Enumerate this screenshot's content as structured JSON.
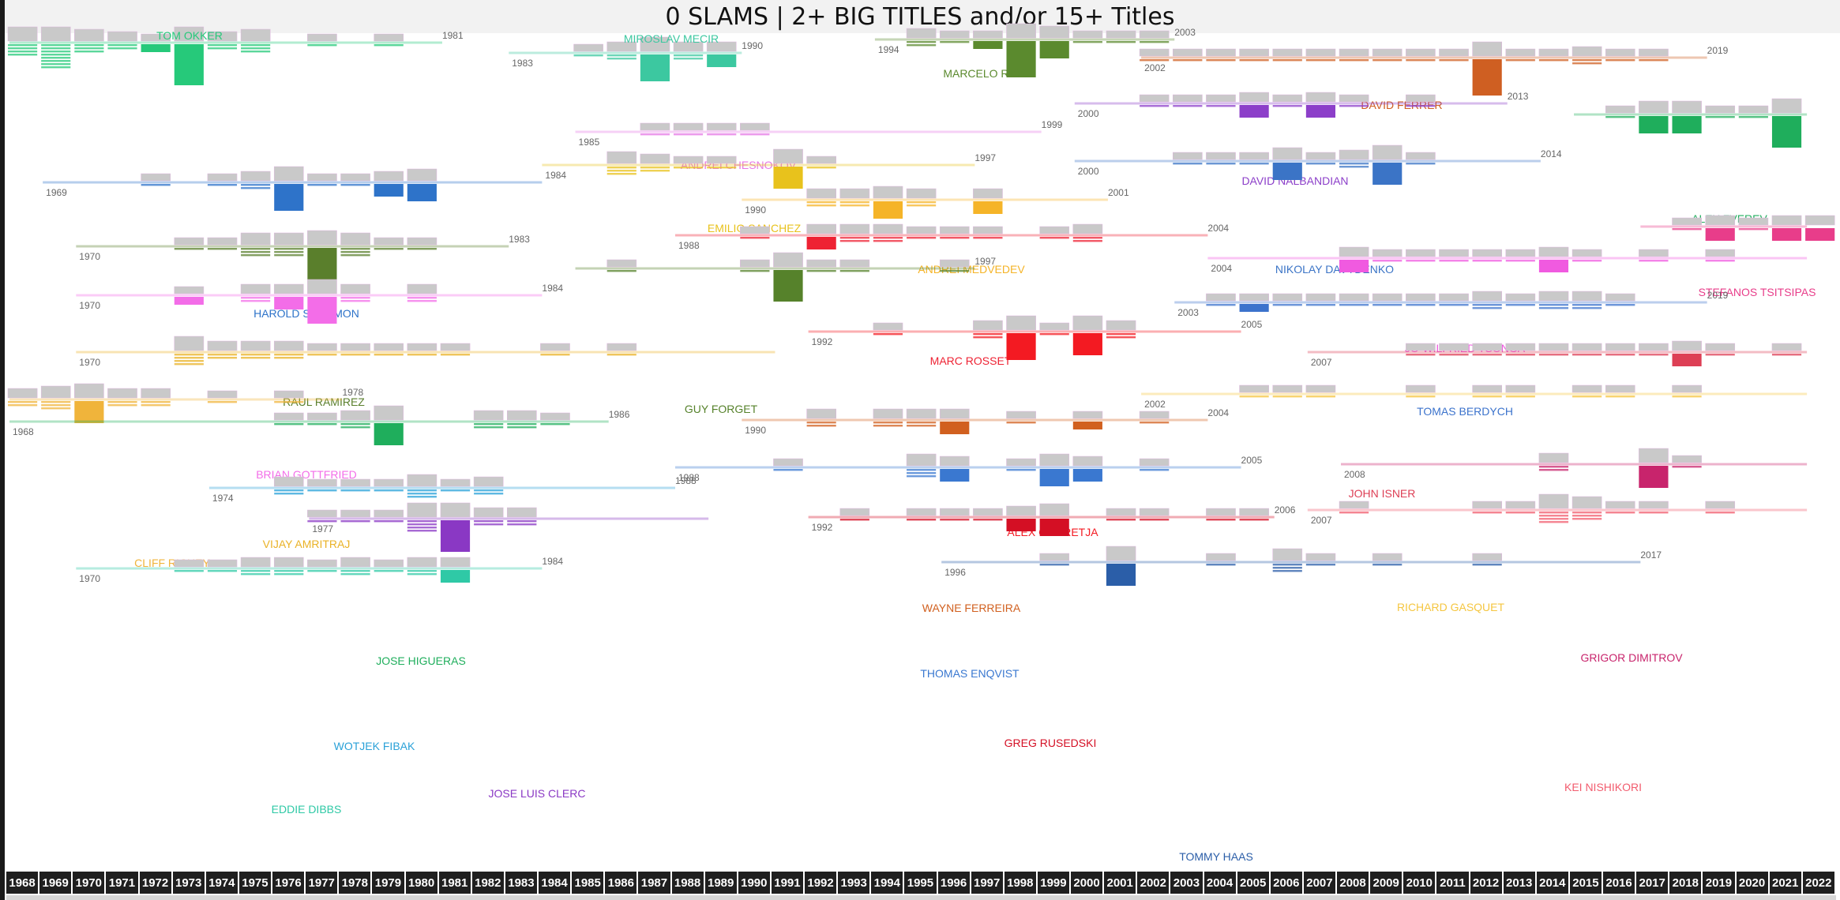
{
  "title": "0 SLAMS | 2+ BIG TITLES and/or 15+ Titles",
  "chart_data": {
    "type": "timeline",
    "title": "0 SLAMS | 2+ BIG TITLES and/or 15+ Titles",
    "x_axis_years": [
      1968,
      1969,
      1970,
      1971,
      1972,
      1973,
      1974,
      1975,
      1976,
      1977,
      1978,
      1979,
      1980,
      1981,
      1982,
      1983,
      1984,
      1985,
      1986,
      1987,
      1988,
      1989,
      1990,
      1991,
      1992,
      1993,
      1994,
      1995,
      1996,
      1997,
      1998,
      1999,
      2000,
      2001,
      2002,
      2003,
      2004,
      2005,
      2006,
      2007,
      2008,
      2009,
      2010,
      2011,
      2012,
      2013,
      2014,
      2015,
      2016,
      2017,
      2018,
      2019,
      2020,
      2021,
      2022
    ],
    "players": [
      {
        "name": "TOM OKKER",
        "color": "#26c97a",
        "start_label": "",
        "end_label": "1981",
        "start": 1968,
        "end": 1981,
        "big": [
          1972,
          1973
        ],
        "titles": {
          "1968": 4,
          "1969": 8,
          "1970": 3,
          "1971": 2,
          "1972": 1,
          "1973": 8,
          "1974": 2,
          "1975": 3,
          "1977": 1,
          "1979": 1
        }
      },
      {
        "name": "MIROSLAV MECIR",
        "color": "#3cc8a0",
        "start_label": "1983",
        "end_label": "1990",
        "start": 1983,
        "end": 1990,
        "big": [
          1987,
          1989
        ],
        "titles": {
          "1985": 1,
          "1986": 2,
          "1987": 5,
          "1988": 2,
          "1989": 2
        }
      },
      {
        "name": "MARCELO RIOS",
        "color": "#5b8a2e",
        "start_label": "1994",
        "end_label": "2003",
        "start": 1994,
        "end": 2003,
        "big": [
          1997,
          1998,
          1999
        ],
        "titles": {
          "1995": 2,
          "1996": 1,
          "1997": 1,
          "1998": 7,
          "1999": 3,
          "2000": 1,
          "2001": 1,
          "2002": 1
        }
      },
      {
        "name": "DAVID FERRER",
        "color": "#cf5f22",
        "start_label": "2002",
        "end_label": "2019",
        "start": 2002,
        "end": 2019,
        "big": [
          2012
        ],
        "titles": {
          "2002": 1,
          "2003": 1,
          "2004": 1,
          "2005": 1,
          "2006": 1,
          "2007": 1,
          "2008": 1,
          "2009": 1,
          "2010": 1,
          "2011": 1,
          "2012": 7,
          "2013": 1,
          "2014": 1,
          "2015": 2,
          "2016": 1,
          "2017": 1
        }
      },
      {
        "name": "DAVID NALBANDIAN",
        "color": "#8c3fc9",
        "start_label": "2000",
        "end_label": "2013",
        "start": 2000,
        "end": 2013,
        "big": [
          2005,
          2007
        ],
        "titles": {
          "2002": 1,
          "2003": 1,
          "2004": 1,
          "2005": 2,
          "2006": 1,
          "2007": 2,
          "2008": 1,
          "2010": 1
        }
      },
      {
        "name": "ALEX ZVEREV",
        "color": "#1fae5c",
        "start_label": "",
        "end_label": "",
        "start": 2015,
        "end": 2022,
        "big": [
          2017,
          2018,
          2021
        ],
        "titles": {
          "2016": 1,
          "2017": 3,
          "2018": 3,
          "2019": 1,
          "2020": 1,
          "2021": 6
        }
      },
      {
        "name": "ANDREI CHESNOKOV",
        "color": "#e678e6",
        "start_label": "1985",
        "end_label": "1999",
        "start": 1985,
        "end": 1999,
        "big": [],
        "titles": {
          "1987": 1,
          "1988": 1,
          "1989": 1,
          "1990": 1
        }
      },
      {
        "name": "EMILIO SANCHEZ",
        "color": "#e8c21c",
        "start_label": "1984",
        "end_label": "1997",
        "start": 1984,
        "end": 1997,
        "big": [
          1991
        ],
        "titles": {
          "1986": 3,
          "1987": 2,
          "1988": 1,
          "1989": 1,
          "1991": 4,
          "1992": 1
        }
      },
      {
        "name": "HAROLD SOLOMON",
        "color": "#2e73c9",
        "start_label": "1969",
        "end_label": "",
        "start": 1969,
        "end": 1984,
        "big": [
          1976,
          1979,
          1980
        ],
        "titles": {
          "1972": 1,
          "1974": 1,
          "1975": 2,
          "1976": 5,
          "1977": 1,
          "1978": 1,
          "1979": 2,
          "1980": 3
        }
      },
      {
        "name": "NIKOLAY DAVYDENKO",
        "color": "#3b74c6",
        "start_label": "2000",
        "end_label": "2014",
        "start": 2000,
        "end": 2014,
        "big": [
          2006,
          2009
        ],
        "titles": {
          "2003": 1,
          "2004": 1,
          "2005": 1,
          "2006": 3,
          "2007": 1,
          "2008": 2,
          "2009": 4,
          "2010": 1
        }
      },
      {
        "name": "ANDREI MEDVEDEV",
        "color": "#f5b428",
        "start_label": "1990",
        "end_label": "2001",
        "start": 1990,
        "end": 2001,
        "big": [
          1994,
          1997
        ],
        "titles": {
          "1992": 2,
          "1993": 2,
          "1994": 3,
          "1995": 2,
          "1997": 2
        }
      },
      {
        "name": "STEFANOS TSITSIPAS",
        "color": "#e83d8a",
        "start_label": "",
        "end_label": "",
        "start": 2017,
        "end": 2022,
        "big": [
          2019,
          2021,
          2022
        ],
        "titles": {
          "2018": 1,
          "2019": 2,
          "2020": 1,
          "2021": 2,
          "2022": 2
        }
      },
      {
        "name": "RAUL RAMIREZ",
        "color": "#5a7f2c",
        "start_label": "1970",
        "end_label": "1983",
        "start": 1970,
        "end": 1983,
        "big": [
          1977
        ],
        "titles": {
          "1973": 1,
          "1974": 1,
          "1975": 3,
          "1976": 3,
          "1977": 6,
          "1978": 3,
          "1979": 1,
          "1980": 1
        }
      },
      {
        "name": "MARC ROSSET",
        "color": "#ee2233",
        "start_label": "1988",
        "end_label": "2004",
        "start": 1988,
        "end": 2004,
        "big": [
          1992
        ],
        "titles": {
          "1990": 1,
          "1992": 2,
          "1993": 2,
          "1994": 2,
          "1995": 1,
          "1996": 1,
          "1997": 1,
          "1999": 1,
          "2000": 2
        }
      },
      {
        "name": "JO-WILFRIED TSONGA",
        "color": "#f05ae0",
        "start_label": "2004",
        "end_label": "",
        "start": 2004,
        "end": 2022,
        "big": [
          2008,
          2014
        ],
        "titles": {
          "2008": 2,
          "2009": 1,
          "2010": 1,
          "2011": 1,
          "2012": 1,
          "2013": 1,
          "2014": 2,
          "2015": 1,
          "2017": 1,
          "2019": 1
        }
      },
      {
        "name": "GUY FORGET",
        "color": "#56822b",
        "start_label": "",
        "end_label": "1997",
        "start": 1985,
        "end": 1997,
        "big": [
          1991
        ],
        "titles": {
          "1986": 1,
          "1990": 1,
          "1991": 6,
          "1992": 1,
          "1993": 1,
          "1996": 1
        }
      },
      {
        "name": "TOMAS BERDYCH",
        "color": "#3c73cc",
        "start_label": "2003",
        "end_label": "2019",
        "start": 2003,
        "end": 2019,
        "big": [
          2005
        ],
        "titles": {
          "2004": 1,
          "2005": 1,
          "2006": 1,
          "2007": 1,
          "2008": 1,
          "2009": 1,
          "2010": 1,
          "2011": 1,
          "2012": 2,
          "2013": 1,
          "2014": 2,
          "2015": 2,
          "2016": 1
        }
      },
      {
        "name": "BRIAN GOTTFRIED",
        "color": "#f36de8",
        "start_label": "1970",
        "end_label": "1984",
        "start": 1970,
        "end": 1984,
        "big": [
          1973,
          1976,
          1977
        ],
        "titles": {
          "1973": 1,
          "1975": 2,
          "1976": 2,
          "1977": 5,
          "1978": 2,
          "1980": 2
        }
      },
      {
        "name": "ALEX CORRETJA",
        "color": "#f31a22",
        "start_label": "1992",
        "end_label": "2005",
        "start": 1992,
        "end": 2005,
        "big": [
          1998,
          2000
        ],
        "titles": {
          "1994": 1,
          "1997": 2,
          "1998": 5,
          "1999": 1,
          "2000": 4,
          "2001": 2
        }
      },
      {
        "name": "JOHN ISNER",
        "color": "#dd3f55",
        "start_label": "2007",
        "end_label": "",
        "start": 2007,
        "end": 2022,
        "big": [
          2018
        ],
        "titles": {
          "2010": 1,
          "2011": 1,
          "2012": 1,
          "2013": 1,
          "2014": 1,
          "2015": 1,
          "2016": 1,
          "2017": 1,
          "2018": 2,
          "2019": 1,
          "2021": 1
        }
      },
      {
        "name": "VIJAY AMRITRAJ",
        "color": "#eab226",
        "start_label": "1970",
        "end_label": "",
        "start": 1970,
        "end": 1991,
        "big": [],
        "titles": {
          "1973": 4,
          "1974": 2,
          "1975": 2,
          "1976": 2,
          "1977": 1,
          "1978": 1,
          "1979": 1,
          "1980": 1,
          "1981": 1,
          "1984": 1,
          "1986": 1
        }
      },
      {
        "name": "CLIFF RICHEY",
        "color": "#f0b43b",
        "start_label": "",
        "end_label": "1978",
        "start": 1968,
        "end": 1978,
        "big": [
          1970
        ],
        "titles": {
          "1968": 2,
          "1969": 3,
          "1970": 4,
          "1971": 2,
          "1972": 2,
          "1974": 1,
          "1976": 1
        }
      },
      {
        "name": "RICHARD GASQUET",
        "color": "#f5c640",
        "start_label": "2002",
        "end_label": "",
        "start": 2002,
        "end": 2022,
        "big": [],
        "titles": {
          "2005": 1,
          "2006": 1,
          "2007": 1,
          "2010": 1,
          "2012": 1,
          "2013": 1,
          "2015": 1,
          "2016": 1,
          "2018": 1
        }
      },
      {
        "name": "JOSE HIGUERAS",
        "color": "#1fae5c",
        "start_label": "1968",
        "end_label": "1986",
        "start": 1968,
        "end": 1986,
        "big": [
          1979
        ],
        "titles": {
          "1976": 1,
          "1977": 1,
          "1978": 2,
          "1979": 4,
          "1982": 2,
          "1983": 2,
          "1984": 1
        }
      },
      {
        "name": "WAYNE FERREIRA",
        "color": "#d1601f",
        "start_label": "1990",
        "end_label": "2004",
        "start": 1990,
        "end": 2004,
        "big": [
          1996,
          2000
        ],
        "titles": {
          "1992": 2,
          "1994": 2,
          "1995": 2,
          "1996": 2,
          "1998": 1,
          "2000": 1,
          "2002": 1
        }
      },
      {
        "name": "GRIGOR DIMITROV",
        "color": "#c8246c",
        "start_label": "2008",
        "end_label": "",
        "start": 2008,
        "end": 2022,
        "big": [
          2017
        ],
        "titles": {
          "2014": 2,
          "2017": 4,
          "2018": 1
        }
      },
      {
        "name": "THOMAS ENQVIST",
        "color": "#3a78d0",
        "start_label": "1988",
        "end_label": "2005",
        "start": 1988,
        "end": 2005,
        "big": [
          1996,
          1999,
          2000
        ],
        "titles": {
          "1991": 1,
          "1995": 3,
          "1996": 2,
          "1998": 1,
          "1999": 3,
          "2000": 2,
          "2002": 1
        }
      },
      {
        "name": "WOTJEK FIBAK",
        "color": "#2aa1d8",
        "start_label": "1974",
        "end_label": "1988",
        "start": 1974,
        "end": 1988,
        "big": [],
        "titles": {
          "1976": 2,
          "1977": 1,
          "1978": 1,
          "1979": 1,
          "1980": 3,
          "1981": 1,
          "1982": 2
        }
      },
      {
        "name": "GREG RUSEDSKI",
        "color": "#d40f24",
        "start_label": "1992",
        "end_label": "2006",
        "start": 1992,
        "end": 2006,
        "big": [
          1998,
          1999
        ],
        "titles": {
          "1993": 1,
          "1995": 1,
          "1996": 1,
          "1997": 1,
          "1998": 2,
          "1999": 3,
          "2001": 1,
          "2002": 1,
          "2004": 1,
          "2005": 1
        }
      },
      {
        "name": "KEI NISHIKORI",
        "color": "#f25c6e",
        "start_label": "2007",
        "end_label": "",
        "start": 2007,
        "end": 2022,
        "big": [],
        "titles": {
          "2008": 1,
          "2012": 1,
          "2013": 1,
          "2014": 4,
          "2015": 3,
          "2016": 1,
          "2017": 1,
          "2019": 1
        }
      },
      {
        "name": "JOSE LUIS CLERC",
        "color": "#8a38c4",
        "start_label": "1977",
        "end_label": "",
        "start": 1977,
        "end": 1989,
        "big": [
          1981
        ],
        "titles": {
          "1977": 1,
          "1978": 1,
          "1979": 1,
          "1980": 4,
          "1981": 6,
          "1982": 2,
          "1983": 2
        }
      },
      {
        "name": "EDDIE DIBBS",
        "color": "#2fc9a6",
        "start_label": "1970",
        "end_label": "1984",
        "start": 1970,
        "end": 1984,
        "big": [
          1981
        ],
        "titles": {
          "1973": 1,
          "1974": 1,
          "1975": 2,
          "1976": 2,
          "1977": 1,
          "1978": 2,
          "1979": 1,
          "1980": 2,
          "1981": 2
        }
      },
      {
        "name": "TOMMY HAAS",
        "color": "#2b5ea8",
        "start_label": "1996",
        "end_label": "2017",
        "start": 1996,
        "end": 2017,
        "big": [
          2001
        ],
        "titles": {
          "1999": 1,
          "2001": 4,
          "2004": 1,
          "2006": 3,
          "2007": 1,
          "2009": 1,
          "2012": 1
        }
      }
    ]
  }
}
